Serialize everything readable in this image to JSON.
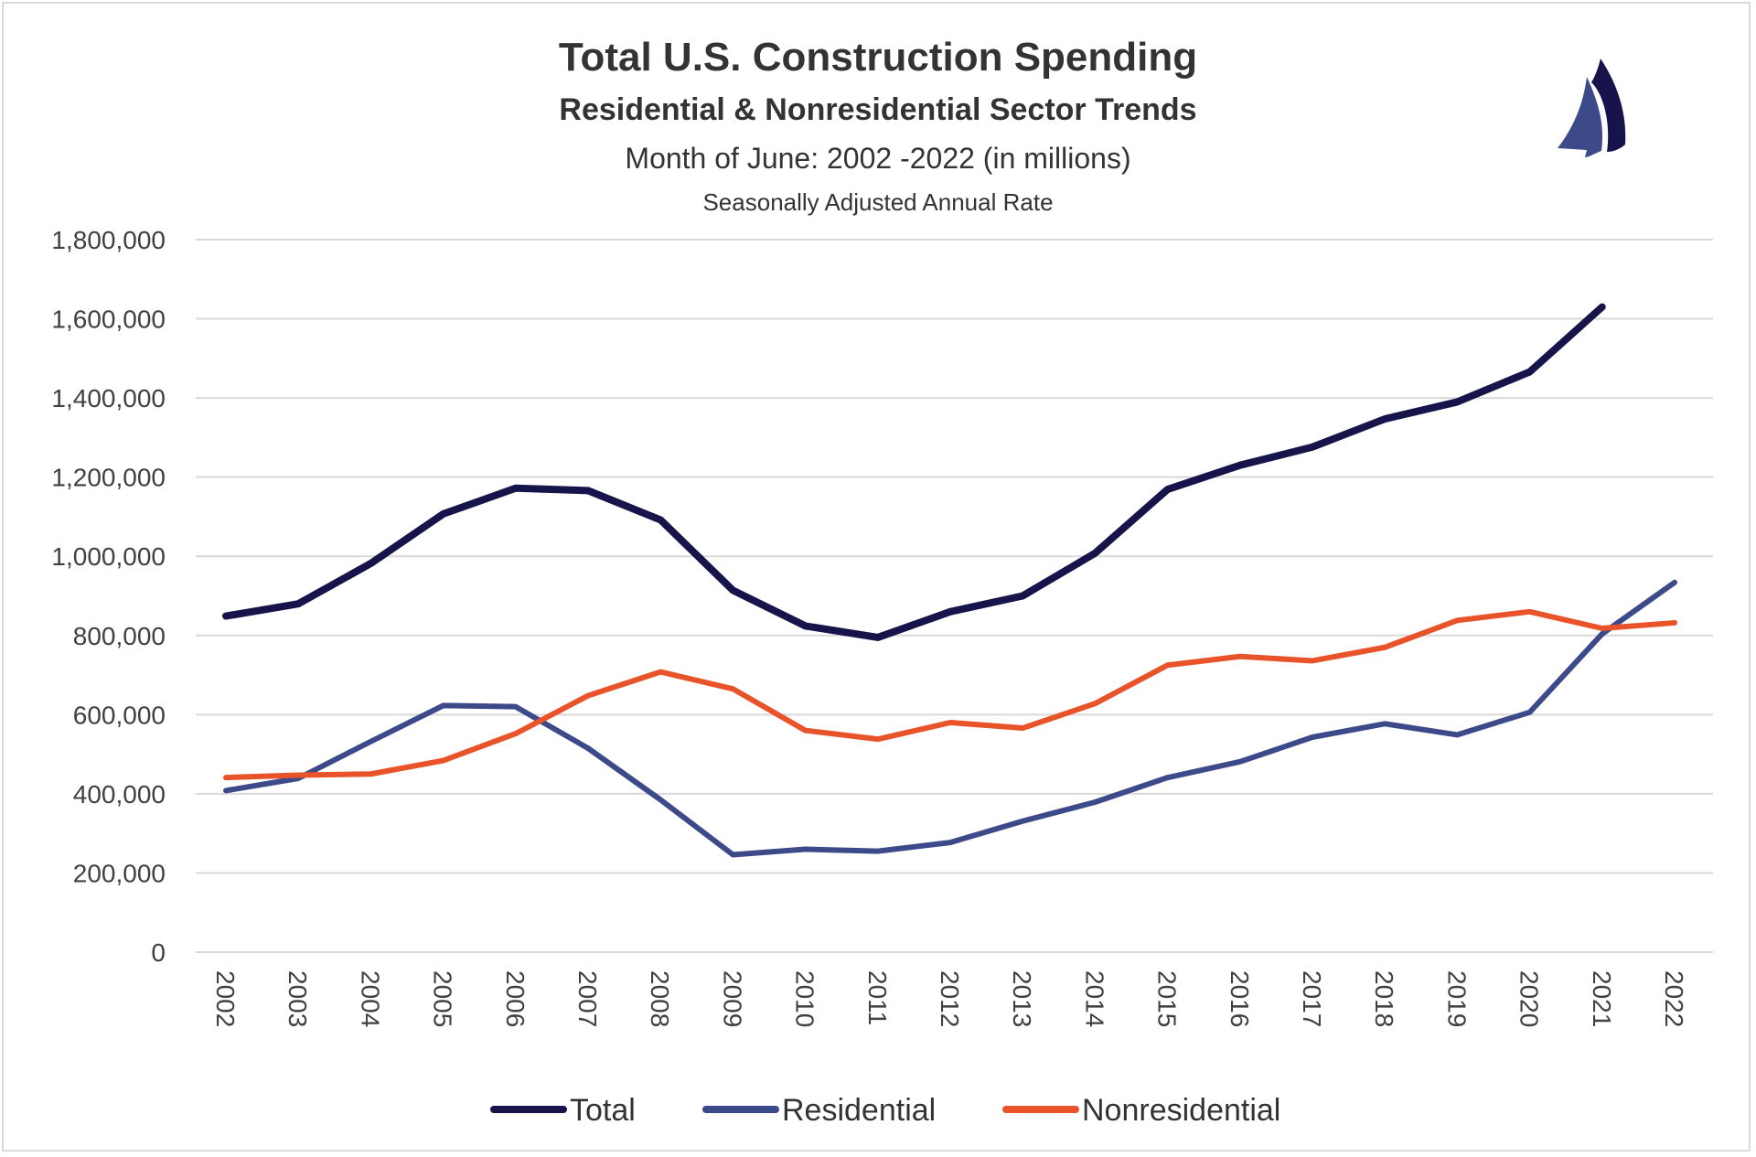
{
  "chart_data": {
    "type": "line",
    "title": "Total U.S. Construction Spending",
    "subtitle": "Residential & Nonresidential Sector Trends",
    "subtitle2": "Month of June: 2002 -2022 (in millions)",
    "subtitle3": "Seasonally Adjusted Annual Rate",
    "xlabel": "",
    "ylabel": "",
    "ylim": [
      0,
      1800000
    ],
    "yticks": [
      "0",
      "200,000",
      "400,000",
      "600,000",
      "800,000",
      "1,000,000",
      "1,200,000",
      "1,400,000",
      "1,600,000",
      "1,800,000"
    ],
    "categories": [
      "2002",
      "2003",
      "2004",
      "2005",
      "2006",
      "2007",
      "2008",
      "2009",
      "2010",
      "2011",
      "2012",
      "2013",
      "2014",
      "2015",
      "2016",
      "2017",
      "2018",
      "2019",
      "2020",
      "2021",
      "2022"
    ],
    "grid": "horizontal",
    "legend": "bottom",
    "series": [
      {
        "name": "Total",
        "color": "#16144a",
        "values": [
          849000,
          880000,
          982000,
          1107000,
          1172000,
          1166000,
          1092000,
          914000,
          824000,
          795000,
          860000,
          900000,
          1008000,
          1169000,
          1230000,
          1276000,
          1347000,
          1390000,
          1466000,
          1630000,
          null
        ]
      },
      {
        "name": "Residential",
        "color": "#3d4a8a",
        "values": [
          408000,
          439000,
          532000,
          623000,
          620000,
          515000,
          385000,
          246000,
          260000,
          255000,
          277000,
          331000,
          379000,
          441000,
          481000,
          543000,
          577000,
          549000,
          606000,
          804000,
          934000
        ]
      },
      {
        "name": "Nonresidential",
        "color": "#e9532a",
        "values": [
          441000,
          447000,
          450000,
          484000,
          552000,
          648000,
          708000,
          665000,
          560000,
          538000,
          580000,
          566000,
          628000,
          725000,
          747000,
          736000,
          770000,
          838000,
          860000,
          818000,
          832000
        ]
      }
    ]
  },
  "logo": {
    "name": "sailboat-logo",
    "colors": [
      "#3d4a8a",
      "#16144a"
    ]
  }
}
